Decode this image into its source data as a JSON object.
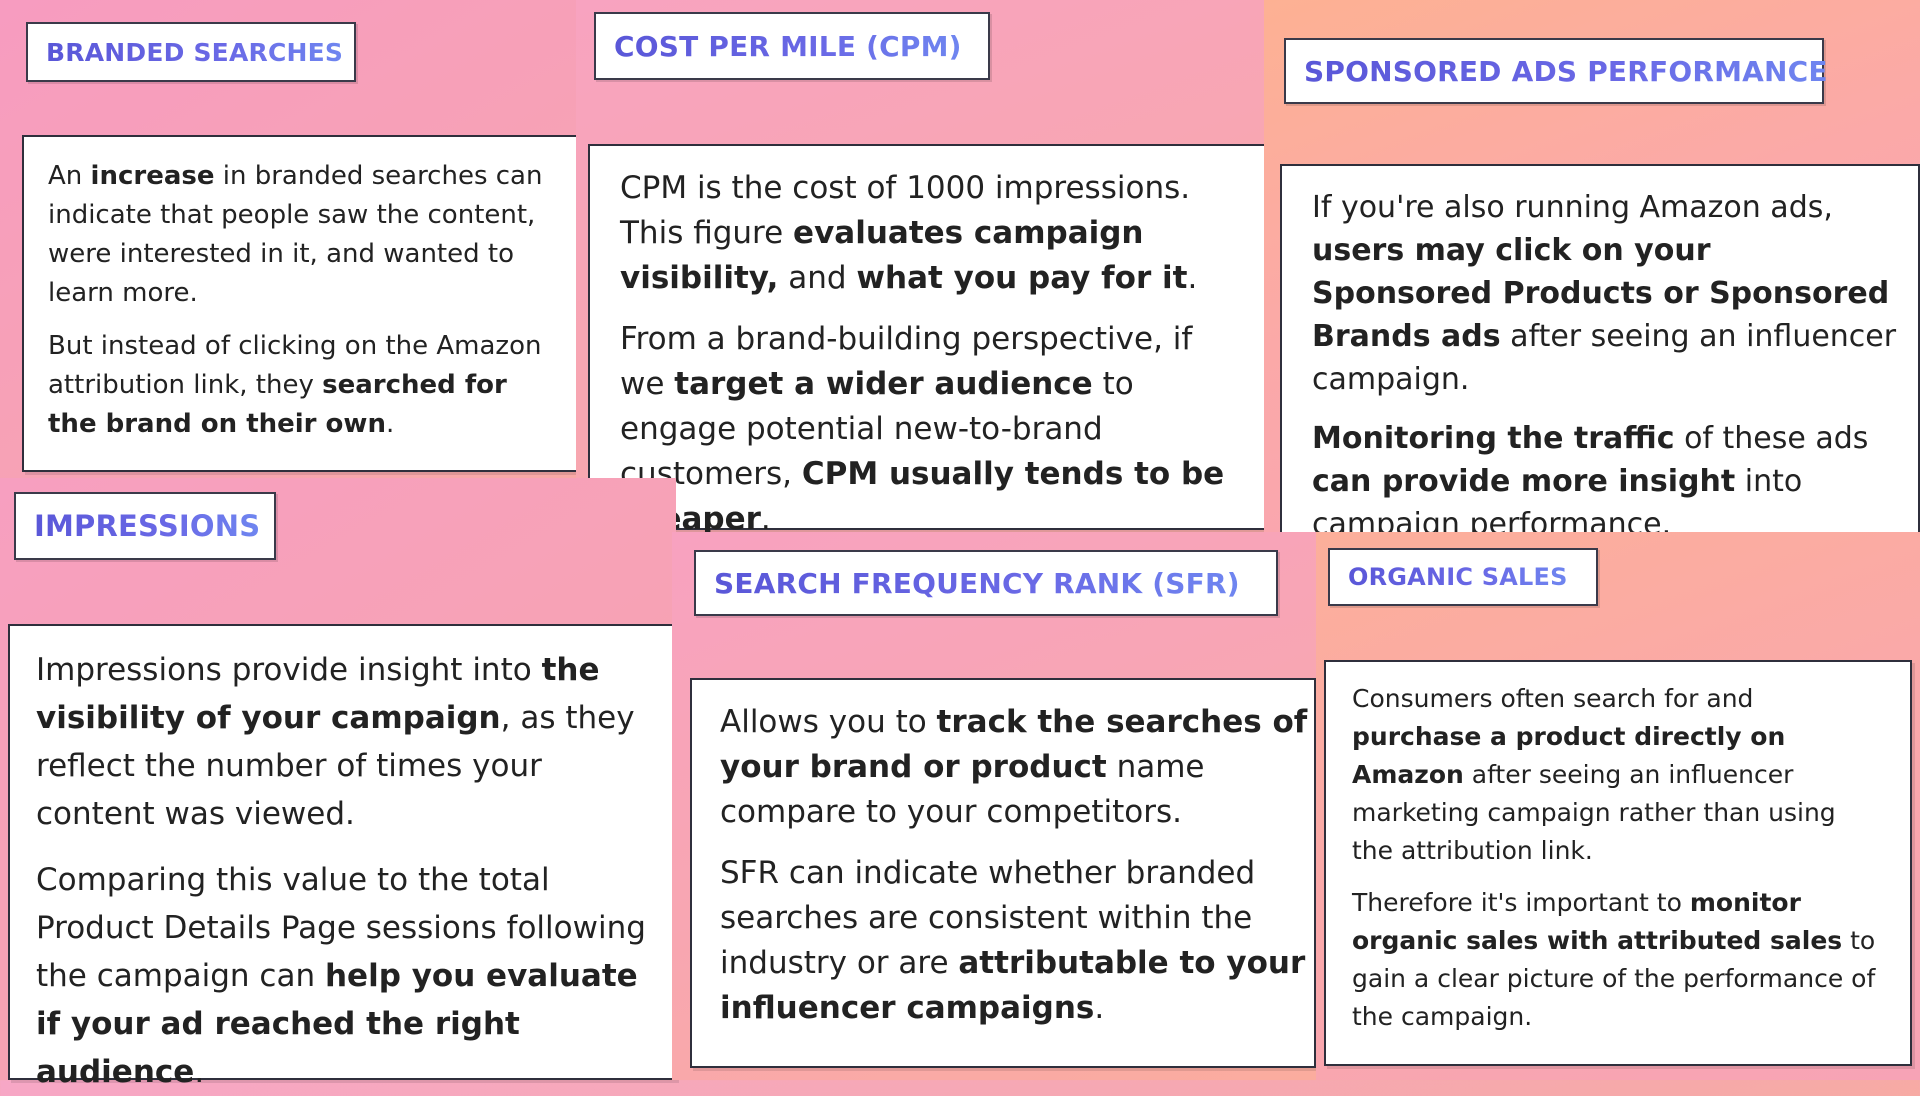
{
  "cards": {
    "branded_searches": {
      "title": "BRANDED SEARCHES",
      "p1": [
        "An ",
        "increase",
        " in branded searches can indicate that people saw the content, were interested in it, and wanted to learn more."
      ],
      "p2": [
        "But instead of clicking on the Amazon attribution link, they ",
        "searched for the brand on their own",
        "."
      ]
    },
    "cpm": {
      "title": "COST PER MILE (CPM)",
      "p1": [
        "CPM is the cost of 1000 impressions. This figure ",
        "evaluates campaign visibility,",
        " and ",
        "what you pay for it",
        "."
      ],
      "p2": [
        "From a brand-building perspective, if we ",
        "target a wider audience",
        " to engage potential new-to-brand customers, ",
        "CPM usually tends to be cheaper",
        "."
      ]
    },
    "sponsored_ads": {
      "title": "SPONSORED ADS PERFORMANCE",
      "p1": [
        "If you're also running Amazon ads, ",
        "users may click on your Sponsored Products or Sponsored Brands ads",
        " after seeing an influencer campaign."
      ],
      "p2": [
        "",
        "Monitoring the traffic",
        " of these ads ",
        "can provide more insight",
        " into campaign performance."
      ]
    },
    "impressions": {
      "title": "IMPRESSIONS",
      "p1": [
        "Impressions provide insight into ",
        "the visibility of your campaign",
        ", as they reflect the number of times your content was viewed."
      ],
      "p2": [
        "Comparing this value to the total Product Details Page sessions following the campaign can ",
        "help you evaluate if your ad reached the right audience",
        "."
      ]
    },
    "sfr": {
      "title": "SEARCH FREQUENCY RANK (SFR)",
      "p1": [
        "Allows you to ",
        "track the searches of your brand or product",
        " name compare to your competitors."
      ],
      "p2": [
        "SFR can indicate whether branded searches are consistent within the industry or are ",
        "attributable to your influencer campaigns",
        "."
      ]
    },
    "organic_sales": {
      "title": "ORGANIC SALES",
      "p1": [
        "Consumers often search for and ",
        "purchase a product directly on Amazon",
        " after seeing an influencer marketing campaign rather than using the attribution link."
      ],
      "p2": [
        "Therefore it's important to ",
        "monitor organic sales with attributed sales",
        " to gain a clear picture of the performance of the campaign."
      ]
    }
  }
}
